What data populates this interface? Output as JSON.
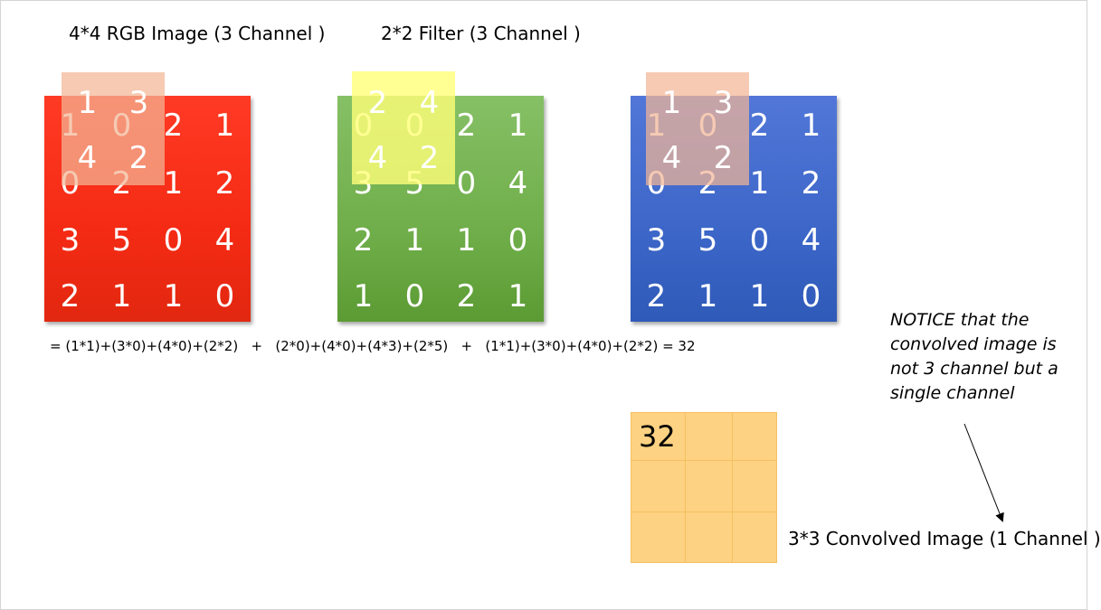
{
  "captions": {
    "image": "4*4 RGB Image (3 Channel )",
    "filter": "2*2 Filter (3 Channel )",
    "output": "3*3 Convolved Image (1 Channel )"
  },
  "channels": [
    {
      "name": "red",
      "color": "#f42a14",
      "values": [
        [
          "1",
          "0",
          "2",
          "1"
        ],
        [
          "0",
          "2",
          "1",
          "2"
        ],
        [
          "3",
          "5",
          "0",
          "4"
        ],
        [
          "2",
          "1",
          "1",
          "0"
        ]
      ]
    },
    {
      "name": "green",
      "color": "#6fae4a",
      "values": [
        [
          "0",
          "0",
          "2",
          "1"
        ],
        [
          "3",
          "5",
          "0",
          "4"
        ],
        [
          "2",
          "1",
          "1",
          "0"
        ],
        [
          "1",
          "0",
          "2",
          "1"
        ]
      ]
    },
    {
      "name": "blue",
      "color": "#3c66c8",
      "values": [
        [
          "1",
          "0",
          "2",
          "1"
        ],
        [
          "0",
          "2",
          "1",
          "2"
        ],
        [
          "3",
          "5",
          "0",
          "4"
        ],
        [
          "2",
          "1",
          "1",
          "0"
        ]
      ]
    }
  ],
  "filters": [
    {
      "name": "red-filter",
      "color": "#f3b596",
      "values": [
        [
          "1",
          "3"
        ],
        [
          "4",
          "2"
        ]
      ]
    },
    {
      "name": "green-filter",
      "color": "#ffff78",
      "values": [
        [
          "2",
          "4"
        ],
        [
          "4",
          "2"
        ]
      ]
    },
    {
      "name": "blue-filter",
      "color": "#f3b596",
      "values": [
        [
          "1",
          "3"
        ],
        [
          "4",
          "2"
        ]
      ]
    }
  ],
  "formula": "= (1*1)+(3*0)+(4*0)+(2*2)   +   (2*0)+(4*0)+(4*3)+(2*5)   +   (1*1)+(3*0)+(4*0)+(2*2) = 32",
  "output": {
    "value": "32",
    "color": "#fdd282"
  },
  "notice": "NOTICE that the convolved image is not 3 channel but a single channel"
}
